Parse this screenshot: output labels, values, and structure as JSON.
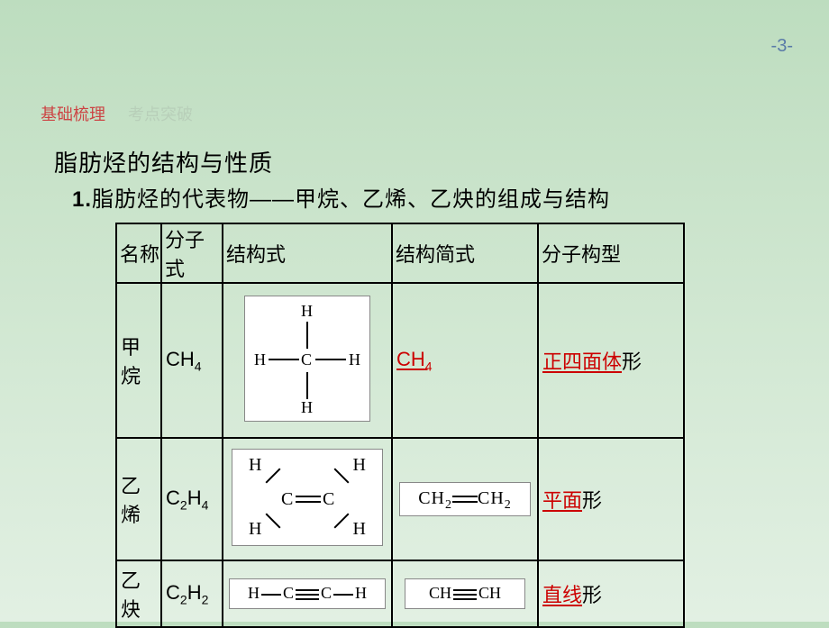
{
  "page": {
    "number": "-3-"
  },
  "tabs": {
    "active": "基础梳理",
    "inactive": "考点突破"
  },
  "heading": {
    "title": "脂肪烃的结构与性质",
    "subtitle_prefix": "1.",
    "subtitle": "脂肪烃的代表物——甲烷、乙烯、乙炔的组成与结构"
  },
  "table": {
    "headers": {
      "name": "名称",
      "mf": "分子式",
      "sf": "结构式",
      "ss": "结构简式",
      "mg": "分子构型"
    },
    "rows": [
      {
        "name": "甲烷",
        "mf_base": "CH",
        "mf_sub": "4",
        "ss_base": "CH",
        "ss_sub": "4",
        "mg_red": "正四面体",
        "mg_tail": "形"
      },
      {
        "name": "乙烯",
        "mf_pre": "C",
        "mf_sub1": "2",
        "mf_mid": "H",
        "mf_sub2": "4",
        "ss_l": "CH",
        "ss_l_sub": "2",
        "ss_r": "CH",
        "ss_r_sub": "2",
        "mg_red": "平面",
        "mg_tail": "形"
      },
      {
        "name": "乙炔",
        "mf_pre": "C",
        "mf_sub1": "2",
        "mf_mid": "H",
        "mf_sub2": "2",
        "ss_l": "CH",
        "ss_r": "CH",
        "mg_red": "直线",
        "mg_tail": "形"
      }
    ],
    "atoms": {
      "H": "H",
      "C": "C"
    }
  }
}
